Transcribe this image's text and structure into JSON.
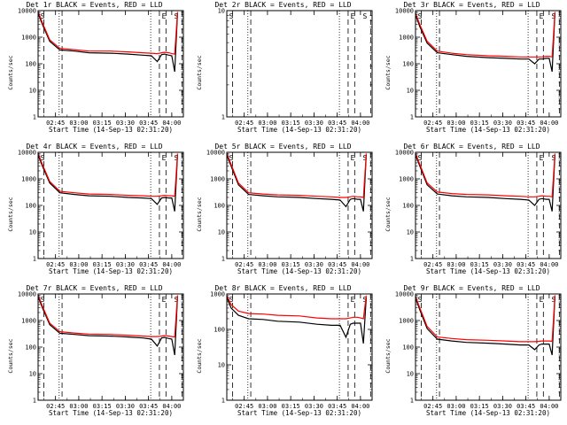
{
  "chart_data": [
    {
      "type": "line",
      "title": "Det 1r BLACK = Events, RED = LLD",
      "xlabel": "Start Time (14-Sep-13 02:31:20)",
      "ylabel": "Counts/sec",
      "xticks": [
        "02:45",
        "03:00",
        "03:15",
        "03:30",
        "03:45",
        "04:00"
      ],
      "yticks": [
        "1",
        "10",
        "100",
        "1000",
        "10000"
      ],
      "yscale": "log",
      "ylim": [
        1,
        10000
      ],
      "markers": [
        "S",
        "E",
        "S"
      ],
      "series": [
        {
          "color": "#000000",
          "x": [
            0,
            0.03,
            0.08,
            0.15,
            0.25,
            0.35,
            0.5,
            0.62,
            0.72,
            0.78,
            0.82,
            0.85,
            0.87,
            0.9,
            0.92,
            0.94,
            0.96
          ],
          "y": [
            8000,
            3000,
            700,
            330,
            300,
            260,
            250,
            230,
            210,
            200,
            120,
            220,
            230,
            210,
            200,
            50,
            8000
          ]
        },
        {
          "color": "#ff0000",
          "x": [
            0,
            0.03,
            0.08,
            0.15,
            0.25,
            0.35,
            0.5,
            0.62,
            0.72,
            0.78,
            0.82,
            0.85,
            0.87,
            0.9,
            0.92,
            0.94,
            0.96
          ],
          "y": [
            9000,
            3500,
            800,
            380,
            340,
            300,
            300,
            280,
            260,
            250,
            240,
            260,
            270,
            260,
            240,
            230,
            9000
          ]
        }
      ]
    },
    {
      "type": "line",
      "title": "Det 2r BLACK = Events, RED = LLD",
      "xlabel": "Start Time (14-Sep-13 02:31:20)",
      "ylabel": "Counts/sec",
      "xticks": [
        "02:45",
        "03:00",
        "03:15",
        "03:30",
        "03:45",
        "04:00"
      ],
      "yticks": [
        "1",
        "10"
      ],
      "yscale": "log",
      "ylim": [
        1,
        10
      ],
      "markers": [
        "S",
        "E",
        "S"
      ],
      "series": []
    },
    {
      "type": "line",
      "title": "Det 3r BLACK = Events, RED = LLD",
      "xlabel": "Start Time (14-Sep-13 02:31:20)",
      "ylabel": "Counts/sec",
      "xticks": [
        "02:45",
        "03:00",
        "03:15",
        "03:30",
        "03:45",
        "04:00"
      ],
      "yticks": [
        "1",
        "10",
        "100",
        "1000",
        "10000"
      ],
      "yscale": "log",
      "ylim": [
        1,
        10000
      ],
      "markers": [
        "S",
        "E",
        "S"
      ],
      "series": [
        {
          "color": "#000000",
          "x": [
            0,
            0.03,
            0.08,
            0.15,
            0.25,
            0.35,
            0.5,
            0.62,
            0.72,
            0.78,
            0.82,
            0.85,
            0.87,
            0.9,
            0.92,
            0.94,
            0.96
          ],
          "y": [
            7000,
            2500,
            600,
            260,
            220,
            190,
            170,
            160,
            150,
            150,
            100,
            150,
            150,
            160,
            160,
            50,
            8000
          ]
        },
        {
          "color": "#ff0000",
          "x": [
            0,
            0.03,
            0.08,
            0.15,
            0.25,
            0.35,
            0.5,
            0.62,
            0.72,
            0.78,
            0.82,
            0.85,
            0.87,
            0.9,
            0.92,
            0.94,
            0.96
          ],
          "y": [
            8000,
            3000,
            700,
            300,
            250,
            220,
            200,
            190,
            180,
            180,
            180,
            180,
            180,
            190,
            190,
            180,
            9000
          ]
        }
      ]
    },
    {
      "type": "line",
      "title": "Det 4r BLACK = Events, RED = LLD",
      "xlabel": "Start Time (14-Sep-13 02:31:20)",
      "ylabel": "Counts/sec",
      "xticks": [
        "02:45",
        "03:00",
        "03:15",
        "03:30",
        "03:45",
        "04:00"
      ],
      "yticks": [
        "1",
        "10",
        "100",
        "1000",
        "10000"
      ],
      "yscale": "log",
      "ylim": [
        1,
        10000
      ],
      "markers": [
        "S",
        "E",
        "S"
      ],
      "series": [
        {
          "color": "#000000",
          "x": [
            0,
            0.03,
            0.08,
            0.15,
            0.25,
            0.35,
            0.5,
            0.62,
            0.72,
            0.78,
            0.82,
            0.85,
            0.87,
            0.9,
            0.92,
            0.94,
            0.96
          ],
          "y": [
            8000,
            3000,
            700,
            300,
            260,
            230,
            220,
            200,
            190,
            180,
            110,
            190,
            200,
            190,
            190,
            60,
            8000
          ]
        },
        {
          "color": "#ff0000",
          "x": [
            0,
            0.03,
            0.08,
            0.15,
            0.25,
            0.35,
            0.5,
            0.62,
            0.72,
            0.78,
            0.82,
            0.85,
            0.87,
            0.9,
            0.92,
            0.94,
            0.96
          ],
          "y": [
            9000,
            3500,
            800,
            340,
            300,
            270,
            260,
            240,
            230,
            220,
            220,
            230,
            240,
            230,
            230,
            220,
            9000
          ]
        }
      ]
    },
    {
      "type": "line",
      "title": "Det 5r BLACK = Events, RED = LLD",
      "xlabel": "Start Time (14-Sep-13 02:31:20)",
      "ylabel": "Counts/sec",
      "xticks": [
        "02:45",
        "03:00",
        "03:15",
        "03:30",
        "03:45",
        "04:00"
      ],
      "yticks": [
        "1",
        "10",
        "100",
        "1000",
        "10000"
      ],
      "yscale": "log",
      "ylim": [
        1,
        10000
      ],
      "markers": [
        "S",
        "E",
        "S"
      ],
      "series": [
        {
          "color": "#000000",
          "x": [
            0,
            0.03,
            0.08,
            0.15,
            0.25,
            0.35,
            0.5,
            0.62,
            0.72,
            0.78,
            0.82,
            0.85,
            0.87,
            0.9,
            0.92,
            0.94,
            0.96
          ],
          "y": [
            8000,
            3000,
            600,
            260,
            230,
            210,
            200,
            180,
            170,
            160,
            90,
            170,
            180,
            170,
            170,
            60,
            8000
          ]
        },
        {
          "color": "#ff0000",
          "x": [
            0,
            0.03,
            0.08,
            0.15,
            0.25,
            0.35,
            0.5,
            0.62,
            0.72,
            0.78,
            0.82,
            0.85,
            0.87,
            0.9,
            0.92,
            0.94,
            0.96
          ],
          "y": [
            9000,
            3500,
            700,
            300,
            270,
            250,
            240,
            220,
            210,
            200,
            200,
            210,
            220,
            210,
            210,
            200,
            9000
          ]
        }
      ]
    },
    {
      "type": "line",
      "title": "Det 6r BLACK = Events, RED = LLD",
      "xlabel": "Start Time (14-Sep-13 02:31:20)",
      "ylabel": "Counts/sec",
      "xticks": [
        "02:45",
        "03:00",
        "03:15",
        "03:30",
        "03:45",
        "04:00"
      ],
      "yticks": [
        "1",
        "10",
        "100",
        "1000",
        "10000"
      ],
      "yscale": "log",
      "ylim": [
        1,
        10000
      ],
      "markers": [
        "S",
        "E",
        "S"
      ],
      "series": [
        {
          "color": "#000000",
          "x": [
            0,
            0.03,
            0.08,
            0.15,
            0.25,
            0.35,
            0.5,
            0.62,
            0.72,
            0.78,
            0.82,
            0.85,
            0.87,
            0.9,
            0.92,
            0.94,
            0.96
          ],
          "y": [
            8000,
            3000,
            600,
            270,
            230,
            210,
            200,
            180,
            170,
            160,
            100,
            170,
            180,
            170,
            170,
            60,
            8000
          ]
        },
        {
          "color": "#ff0000",
          "x": [
            0,
            0.03,
            0.08,
            0.15,
            0.25,
            0.35,
            0.5,
            0.62,
            0.72,
            0.78,
            0.82,
            0.85,
            0.87,
            0.9,
            0.92,
            0.94,
            0.96
          ],
          "y": [
            9000,
            3500,
            700,
            320,
            280,
            260,
            250,
            230,
            220,
            210,
            210,
            220,
            230,
            220,
            220,
            210,
            9000
          ]
        }
      ]
    },
    {
      "type": "line",
      "title": "Det 7r BLACK = Events, RED = LLD",
      "xlabel": "Start Time (14-Sep-13 02:31:20)",
      "ylabel": "Counts/sec",
      "xticks": [
        "02:45",
        "03:00",
        "03:15",
        "03:30",
        "03:45",
        "04:00"
      ],
      "yticks": [
        "1",
        "10",
        "100",
        "1000",
        "10000"
      ],
      "yscale": "log",
      "ylim": [
        1,
        10000
      ],
      "markers": [
        "S",
        "E",
        "S"
      ],
      "series": [
        {
          "color": "#000000",
          "x": [
            0,
            0.03,
            0.08,
            0.15,
            0.25,
            0.35,
            0.5,
            0.62,
            0.72,
            0.78,
            0.82,
            0.85,
            0.87,
            0.9,
            0.92,
            0.94,
            0.96
          ],
          "y": [
            8000,
            3000,
            700,
            330,
            300,
            270,
            260,
            240,
            220,
            200,
            110,
            220,
            230,
            210,
            200,
            50,
            8000
          ]
        },
        {
          "color": "#ff0000",
          "x": [
            0,
            0.03,
            0.08,
            0.15,
            0.25,
            0.35,
            0.5,
            0.62,
            0.72,
            0.78,
            0.82,
            0.85,
            0.87,
            0.9,
            0.92,
            0.94,
            0.96
          ],
          "y": [
            9000,
            3500,
            800,
            380,
            340,
            310,
            300,
            280,
            260,
            250,
            250,
            260,
            270,
            260,
            250,
            240,
            9000
          ]
        }
      ]
    },
    {
      "type": "line",
      "title": "Det 8r BLACK = Events, RED = LLD",
      "xlabel": "Start Time (14-Sep-13 02:31:20)",
      "ylabel": "Counts/sec",
      "xticks": [
        "02:45",
        "03:00",
        "03:15",
        "03:30",
        "03:45",
        "04:00"
      ],
      "yticks": [
        "1",
        "10",
        "100",
        "1000"
      ],
      "yscale": "log",
      "ylim": [
        1,
        1000
      ],
      "markers": [
        "S",
        "E",
        "S"
      ],
      "series": [
        {
          "color": "#000000",
          "x": [
            0,
            0.03,
            0.08,
            0.15,
            0.25,
            0.35,
            0.5,
            0.62,
            0.72,
            0.78,
            0.82,
            0.85,
            0.87,
            0.9,
            0.92,
            0.94,
            0.96
          ],
          "y": [
            800,
            400,
            250,
            200,
            190,
            170,
            160,
            140,
            130,
            130,
            60,
            140,
            150,
            150,
            150,
            40,
            800
          ]
        },
        {
          "color": "#ff0000",
          "x": [
            0,
            0.03,
            0.08,
            0.15,
            0.25,
            0.35,
            0.5,
            0.62,
            0.72,
            0.78,
            0.82,
            0.85,
            0.87,
            0.9,
            0.92,
            0.94,
            0.96
          ],
          "y": [
            900,
            500,
            330,
            280,
            270,
            250,
            240,
            210,
            200,
            200,
            200,
            210,
            220,
            220,
            210,
            200,
            900
          ]
        }
      ]
    },
    {
      "type": "line",
      "title": "Det 9r BLACK = Events, RED = LLD",
      "xlabel": "Start Time (14-Sep-13 02:31:20)",
      "ylabel": "Counts/sec",
      "xticks": [
        "02:45",
        "03:00",
        "03:15",
        "03:30",
        "03:45",
        "04:00"
      ],
      "yticks": [
        "1",
        "10",
        "100",
        "1000",
        "10000"
      ],
      "yscale": "log",
      "ylim": [
        1,
        10000
      ],
      "markers": [
        "S",
        "E",
        "S"
      ],
      "series": [
        {
          "color": "#000000",
          "x": [
            0,
            0.03,
            0.08,
            0.15,
            0.25,
            0.35,
            0.5,
            0.62,
            0.72,
            0.78,
            0.82,
            0.85,
            0.87,
            0.9,
            0.92,
            0.94,
            0.96
          ],
          "y": [
            7000,
            2500,
            500,
            200,
            170,
            150,
            140,
            130,
            120,
            120,
            80,
            120,
            130,
            130,
            130,
            50,
            8000
          ]
        },
        {
          "color": "#ff0000",
          "x": [
            0,
            0.03,
            0.08,
            0.15,
            0.25,
            0.35,
            0.5,
            0.62,
            0.72,
            0.78,
            0.82,
            0.85,
            0.87,
            0.9,
            0.92,
            0.94,
            0.96
          ],
          "y": [
            8000,
            3000,
            600,
            240,
            210,
            190,
            180,
            170,
            160,
            160,
            160,
            165,
            170,
            170,
            170,
            165,
            9000
          ]
        }
      ]
    }
  ]
}
